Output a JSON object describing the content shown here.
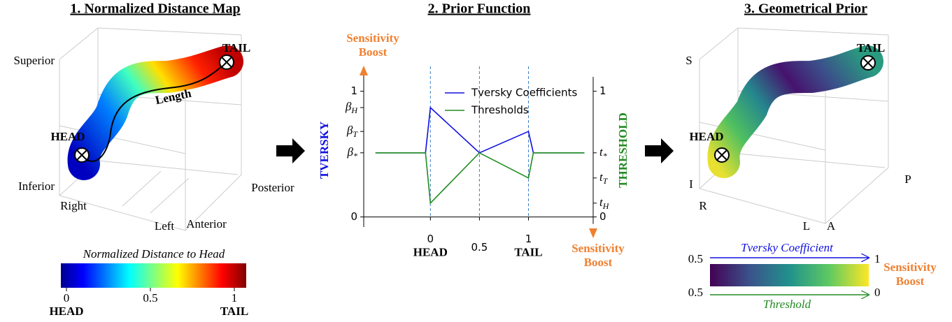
{
  "panel1": {
    "title": "1. Normalized Distance Map",
    "axis_labels": [
      "Superior",
      "Inferior",
      "Right",
      "Left",
      "Anterior",
      "Posterior"
    ],
    "tail": "TAIL",
    "head": "HEAD",
    "path_label": "Length",
    "colorbar": {
      "title": "Normalized Distance to Head",
      "ticks": [
        0,
        0.5,
        1
      ],
      "start": "HEAD",
      "end": "TAIL"
    }
  },
  "chart_data": {
    "type": "line",
    "title": "2. Prior Function",
    "x": [
      -0.56,
      -0.05,
      0,
      0.5,
      1,
      1.05,
      1.57
    ],
    "series": [
      {
        "name": "Tversky Coefficients",
        "color": "#1010e0",
        "values": [
          0.51,
          0.51,
          0.87,
          0.51,
          0.68,
          0.51,
          0.51
        ]
      },
      {
        "name": "Thresholds",
        "color": "#228b22",
        "values": [
          0.51,
          0.51,
          0.11,
          0.51,
          0.31,
          0.51,
          0.51
        ],
        "axis": "y2"
      }
    ],
    "xlim": [
      -0.68,
      1.66
    ],
    "xticks": [
      0,
      0.5,
      1
    ],
    "x_annotations": [
      "HEAD",
      "TAIL"
    ],
    "ylim": [
      -0.08,
      1.17
    ],
    "yticks": [
      0,
      {
        "value": 0.51,
        "label": "β*"
      },
      {
        "value": 0.68,
        "label": "βT"
      },
      {
        "value": 0.87,
        "label": "βH"
      },
      1
    ],
    "y2lim": [
      -0.08,
      1.17
    ],
    "y2ticks": [
      0,
      {
        "value": 0.11,
        "label": "tH"
      },
      {
        "value": 0.31,
        "label": "tT"
      },
      {
        "value": 0.51,
        "label": "t*"
      },
      1
    ],
    "ylabel": "TVERSKY",
    "y2label": "THRESHOLD",
    "top_annotation": "Sensitivity Boost",
    "bottom_annotation": "Sensitivity Boost",
    "grid": true
  },
  "panel3": {
    "title": "3. Geometrical Prior",
    "axis_labels": [
      "S",
      "I",
      "R",
      "L",
      "A",
      "P"
    ],
    "tail": "TAIL",
    "head": "HEAD",
    "colorbar": {
      "top_label": "Tversky Coefficient",
      "top_ticks": [
        0.5,
        1
      ],
      "bottom_label": "Threshold",
      "bottom_ticks": [
        0.5,
        0
      ],
      "side_label": "Sensitivity Boost"
    }
  }
}
